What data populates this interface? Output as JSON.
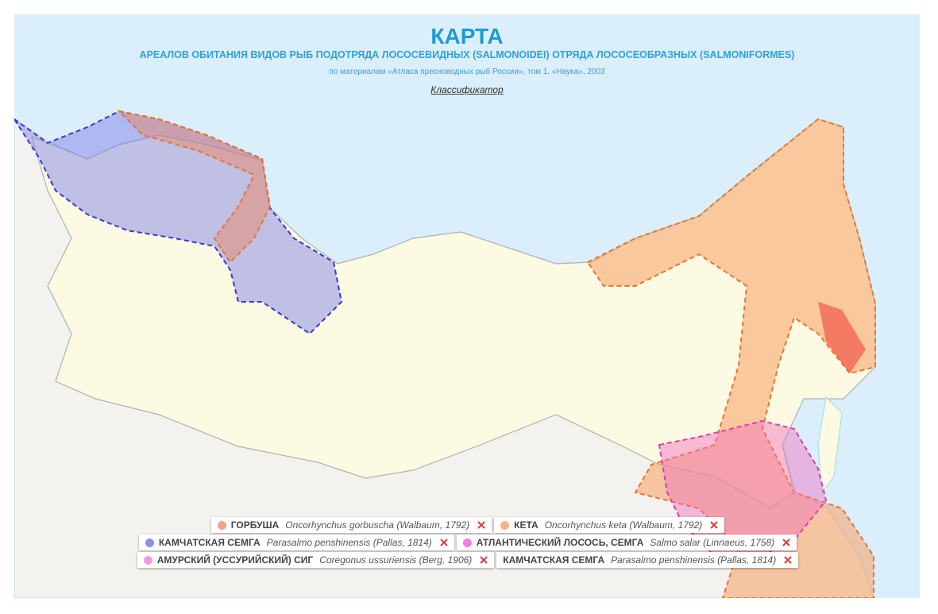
{
  "header": {
    "title": "КАРТА",
    "subtitle": "АРЕАЛОВ ОБИТАНИЯ ВИДОВ РЫБ ПОДОТРЯДА ЛОСОСЕВИДНЫХ (SALMONOIDEI) ОТРЯДА ЛОСОСЕОБРАЗНЫХ (SALMONIFORMES)",
    "source": "по материалам «Атласа пресноводных рыб России», том 1, «Наука», 2003",
    "link": "Классификатор"
  },
  "legend": [
    {
      "name": "ГОРБУША",
      "latin": "Oncorhynchus gorbuscha (Walbaum, 1792)",
      "color": "#f4a383"
    },
    {
      "name": "КЕТА",
      "latin": "Oncorhynchus keta (Walbaum, 1792)",
      "color": "#f6b486"
    },
    {
      "name": "КАМЧАТСКАЯ СЕМГА",
      "latin": "Parasalmo penshinensis (Pallas, 1814)",
      "color": "#9090ec"
    },
    {
      "name": "АТЛАНТИЧЕСКИЙ ЛОСОСЬ, СЕМГА",
      "latin": "Salmo salar (Linnaeus, 1758)",
      "color": "#f07ee6"
    },
    {
      "name": "АМУРСКИЙ (УССУРИЙСКИЙ) СИГ",
      "latin": "Coregonus ussuriensis (Berg, 1906)",
      "color": "#f39bd3"
    },
    {
      "name": "КАМЧАТСКАЯ СЕМГА",
      "latin": "Parasalmo penshinensis (Pallas, 1814)"
    }
  ]
}
